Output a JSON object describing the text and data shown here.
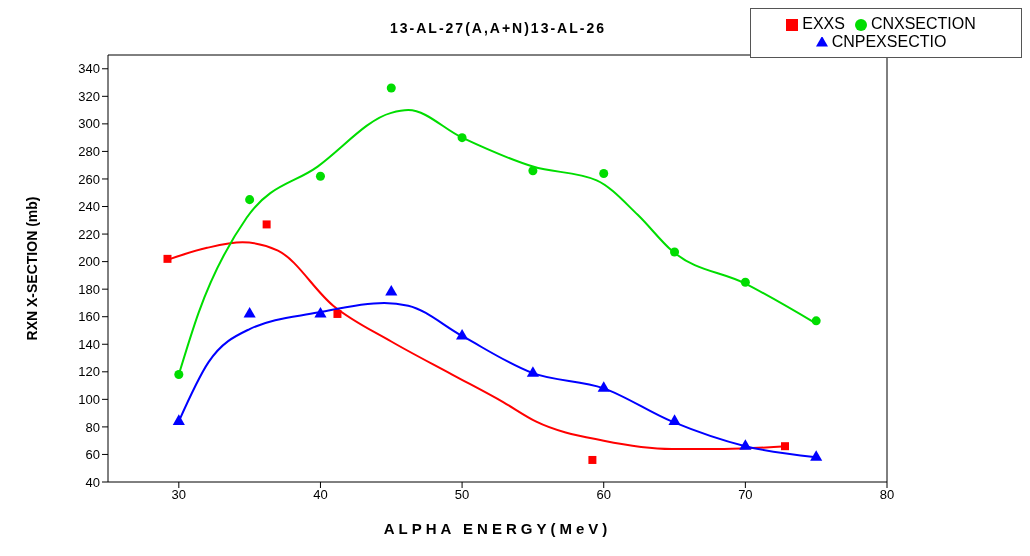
{
  "chart_data": {
    "type": "scatter",
    "title": "13-AL-27(A,A+N)13-AL-26",
    "xlabel": "ALPHA ENERGY(MeV)",
    "ylabel": "RXN X-SECTION (mb)",
    "xlim": [
      25,
      80
    ],
    "xticks": [
      30,
      40,
      50,
      60,
      70,
      80
    ],
    "ylim": [
      40,
      350
    ],
    "yticks": [
      40,
      60,
      80,
      100,
      120,
      140,
      160,
      180,
      200,
      220,
      240,
      260,
      280,
      300,
      320,
      340
    ],
    "grid": false,
    "legend": "top right",
    "series": [
      {
        "name": "EXXS",
        "marker": "square",
        "color": "#ff0000",
        "x": [
          29.2,
          36.2,
          41.2,
          59.2,
          72.8
        ],
        "values": [
          202,
          227,
          162,
          56,
          66
        ]
      },
      {
        "name": "CNXSECTION",
        "marker": "circle",
        "color": "#00dd00",
        "x": [
          30,
          35,
          40,
          45,
          50,
          55,
          60,
          65,
          70,
          75
        ],
        "values": [
          118,
          245,
          262,
          326,
          290,
          266,
          264,
          207,
          185,
          157
        ]
      },
      {
        "name": "CNPEXSECTIO",
        "marker": "triangle",
        "color": "#0000ff",
        "x": [
          30,
          35,
          40,
          45,
          50,
          55,
          60,
          65,
          70,
          75
        ],
        "values": [
          84,
          162,
          162,
          178,
          146,
          119,
          108,
          84,
          66,
          58
        ]
      },
      {
        "type": "line",
        "marker": "none",
        "color": "#ff0000",
        "x": [
          29.4,
          32,
          34.5,
          37,
          40.9,
          45,
          49.3,
          52.9,
          55.2,
          60,
          64.8,
          68.5,
          72.9
        ],
        "values": [
          202,
          210,
          214,
          208,
          168,
          142,
          118,
          98,
          84,
          70,
          64,
          64,
          66
        ]
      },
      {
        "type": "line",
        "marker": "none",
        "color": "#00dd00",
        "x": [
          30,
          31.4,
          34.8,
          39.8,
          45,
          46.2,
          50,
          55,
          59.5,
          62.4,
          64.8,
          70,
          75
        ],
        "values": [
          118,
          163,
          232,
          269,
          308,
          310,
          290,
          269,
          259,
          234,
          208,
          184,
          155
        ]
      },
      {
        "type": "line",
        "marker": "none",
        "color": "#0000ff",
        "x": [
          30,
          32.1,
          35,
          39.8,
          44.5,
          46.2,
          50,
          55,
          60,
          64.8,
          70,
          75
        ],
        "values": [
          84,
          127,
          151,
          163,
          170,
          168,
          146,
          119,
          108,
          84,
          66,
          58
        ]
      }
    ]
  }
}
